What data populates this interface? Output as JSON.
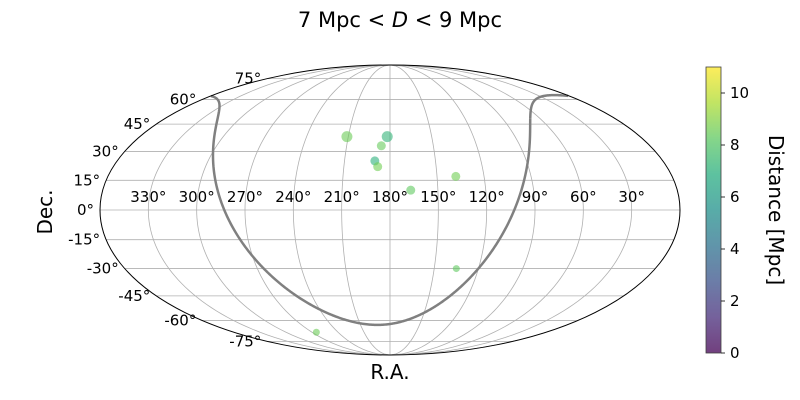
{
  "chart_data": {
    "type": "scatter",
    "projection": "mollweide",
    "title_parts": [
      "7 Mpc < ",
      "D",
      " < 9 Mpc"
    ],
    "xlabel": "R.A.",
    "ylabel": "Dec.",
    "colorbar_label": "Distance  [Mpc]",
    "ra_tick_labels": [
      "330°",
      "300°",
      "270°",
      "240°",
      "210°",
      "180°",
      "150°",
      "120°",
      "90°",
      "60°",
      "30°"
    ],
    "dec_tick_labels": [
      "75°",
      "60°",
      "45°",
      "30°",
      "15°",
      "0°",
      "-15°",
      "-30°",
      "-45°",
      "-60°",
      "-75°"
    ],
    "colorbar_ticks": [
      "0",
      "2",
      "4",
      "6",
      "8",
      "10"
    ],
    "colorbar_range": [
      0,
      11
    ],
    "colormap": "viridis",
    "grid": true,
    "points": [
      {
        "ra": 211,
        "dec": 38,
        "distance": 8.5,
        "size": 5.5
      },
      {
        "ra": 182,
        "dec": 38,
        "distance": 7.2,
        "size": 5.5
      },
      {
        "ra": 186,
        "dec": 33,
        "distance": 8.4,
        "size": 4.5
      },
      {
        "ra": 190,
        "dec": 25,
        "distance": 7.0,
        "size": 4.5
      },
      {
        "ra": 188,
        "dec": 22,
        "distance": 8.6,
        "size": 4.5
      },
      {
        "ra": 167,
        "dec": 10,
        "distance": 8.3,
        "size": 4.5
      },
      {
        "ra": 138,
        "dec": 17,
        "distance": 8.6,
        "size": 4.5
      },
      {
        "ra": 135,
        "dec": -30,
        "distance": 8.3,
        "size": 3.5
      },
      {
        "ra": 265,
        "dec": -68,
        "distance": 8.5,
        "size": 3.5
      }
    ],
    "galactic_plane_color": "#808080"
  }
}
